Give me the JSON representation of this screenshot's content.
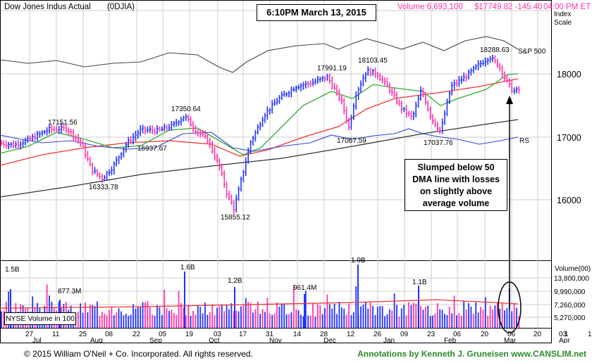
{
  "header": {
    "index_name": "Dow Jones Indus Actual",
    "ticker": "(0DJIA)",
    "volume": "Volume 6,693,100",
    "price": "$17749.82 -145.40",
    "time": "04:00 PM ET",
    "timestamp_box": "6:10PM March 13, 2015",
    "scale_label": "Index\nScale"
  },
  "colors": {
    "up": "#2233ff",
    "down": "#ff33aa",
    "ma50": "#33aa33",
    "ma200": "#333333",
    "ema": "#ee3333",
    "rs": "#3344cc",
    "sp500": "#444444",
    "grid": "#cccccc"
  },
  "chart_data": {
    "type": "line",
    "y_ticks": [
      "16000",
      "17000",
      "18000"
    ],
    "price_labels": [
      "17151.56",
      "16333.78",
      "17350.64",
      "16937.67",
      "15855.12",
      "17991.19",
      "18103.45",
      "17067.59",
      "17037.76",
      "18288.63"
    ],
    "line_labels": [
      "S&P 500",
      "RS"
    ],
    "volume_axis_label": "Volume(00)",
    "volume_ticks": [
      "13,800,000",
      "9,990,000",
      "7,260,000",
      "5,270,000"
    ],
    "volume_labels": [
      "1.5B",
      "877.3M",
      "1.6B",
      "1.2B",
      "961.4M",
      "1.9B",
      "1.1B"
    ],
    "volume_legend": "NYSE Volume in 100",
    "x_day_labels": [
      "27",
      "11",
      "25",
      "08",
      "22",
      "05",
      "19",
      "03",
      "17",
      "31",
      "14",
      "28",
      "12",
      "26",
      "09",
      "23",
      "06",
      "20",
      "06",
      "20",
      "03"
    ],
    "x_month_labels": [
      "Jul",
      "Aug",
      "Sep",
      "Oct",
      "Nov",
      "Dec",
      "Jan",
      "Feb",
      "Mar",
      "Apr"
    ],
    "x_month_nums": [
      "1",
      "1"
    ],
    "annotation": "Slumped below 50\nDMA line with losses\non slightly above\naverage volume"
  },
  "footer": {
    "copyright": "© 2015  William O'Neil + Co. Incorporated. All rights reserved.",
    "annotations": "Annotations by Kenneth J. Gruneisen www.CANSLIM.net"
  }
}
